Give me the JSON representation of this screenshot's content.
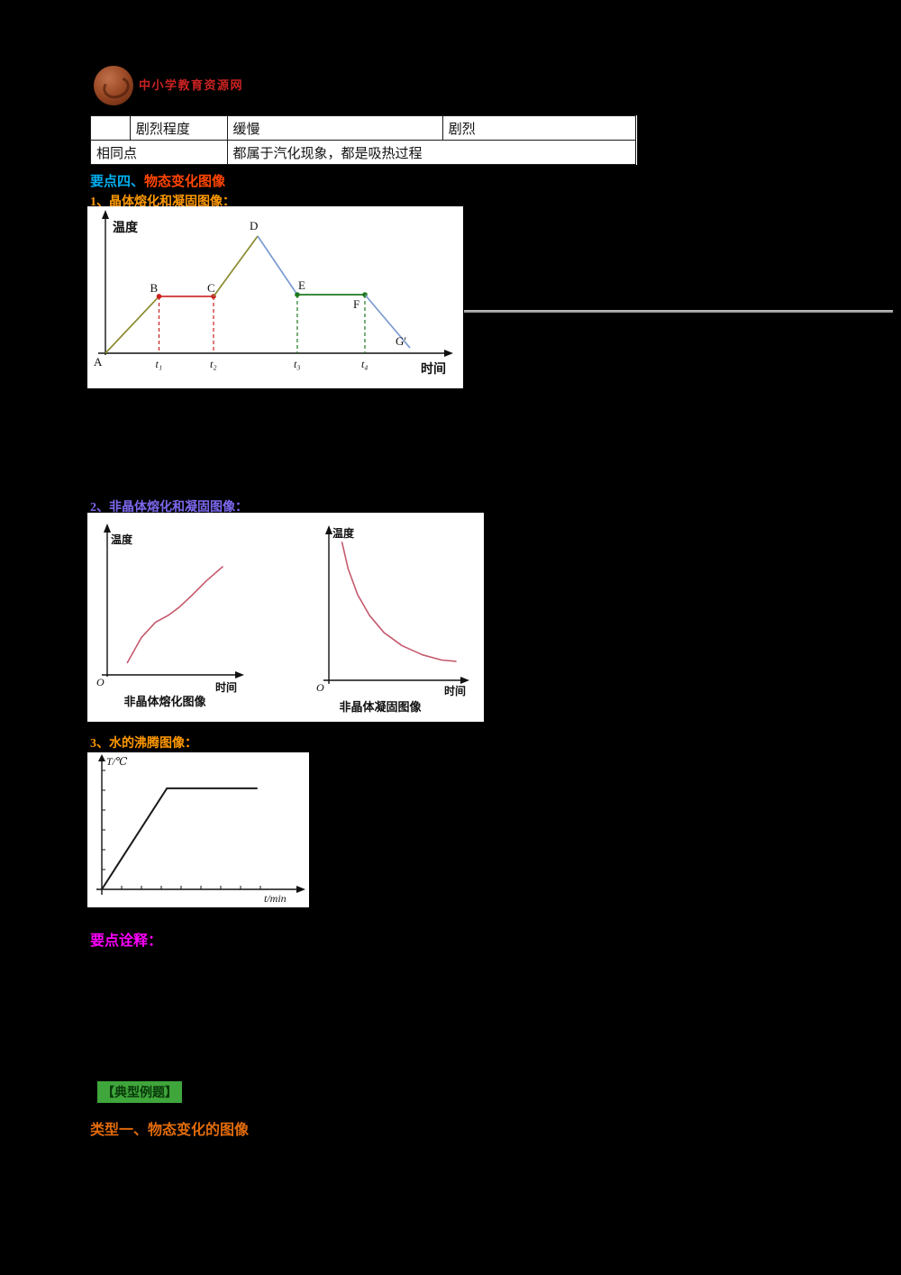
{
  "colors": {
    "background": "#000000",
    "topic_part1": "#00AEEF",
    "topic_part2": "#FF4500",
    "sub_heading_orange": "#FF9900",
    "sub_heading_violet": "#7B68EE",
    "notes_magenta": "#FF00FF",
    "examples_green": "#3FA63C",
    "type_orange": "#E26B0A",
    "logo_red": "#CC2222",
    "melt_plateau_red": "#cc2020",
    "freeze_plateau_green": "#1f7a1f",
    "cooling_blue": "#7b9bd2",
    "amorphous_curve_pink": "#c65a6e"
  },
  "logo": {
    "text": "中小学教育资源网"
  },
  "table": {
    "rows": [
      {
        "cells": [
          "",
          "剧烈程度",
          "缓慢",
          "剧烈"
        ]
      },
      {
        "cells": [
          "相同点",
          "都属于汽化现象，都是吸热过程"
        ]
      }
    ]
  },
  "headings": {
    "topic_part1": "要点四、",
    "topic_part2": "物态变化图像",
    "sub1": "1、晶体熔化和凝固图像：",
    "sub2": "2、非晶体熔化和凝固图像：",
    "sub3": "3、水的沸腾图像：",
    "notes": "要点诠释：",
    "examples": "【典型例题】",
    "type1": "类型一、物态变化的图像"
  },
  "chart_data": [
    {
      "type": "line",
      "title": "晶体熔化和凝固图像",
      "xlabel": "时间",
      "ylabel": "温度",
      "point_labels": [
        "A",
        "B",
        "C",
        "D",
        "E",
        "F",
        "G′"
      ],
      "points_norm": [
        [
          0,
          0
        ],
        [
          0.176,
          0.485
        ],
        [
          0.355,
          0.485
        ],
        [
          0.5,
          1.0
        ],
        [
          0.63,
          0.5
        ],
        [
          0.852,
          0.5
        ],
        [
          1.0,
          0.046
        ]
      ],
      "segments": [
        {
          "i": 0,
          "color": "#8a8a30"
        },
        {
          "i": 1,
          "color": "#cc2020",
          "dots": true
        },
        {
          "i": 2,
          "color": "#8a8a30"
        },
        {
          "i": 3,
          "color": "#7b9bd2"
        },
        {
          "i": 4,
          "color": "#1f7a1f",
          "dots": true
        },
        {
          "i": 5,
          "color": "#7b9bd2"
        }
      ],
      "dashed": [
        {
          "point": 1,
          "tick": "t₁",
          "color": "#cc2020"
        },
        {
          "point": 2,
          "tick": "t₂",
          "color": "#cc2020"
        },
        {
          "point": 4,
          "tick": "t₃",
          "color": "#1f7a1f"
        },
        {
          "point": 5,
          "tick": "t₄",
          "color": "#1f7a1f"
        }
      ]
    },
    {
      "type": "line",
      "title": "非晶体熔化图像",
      "xlabel": "时间",
      "ylabel": "温度",
      "origin_label": "O",
      "color": "#c65a6e",
      "points_norm": [
        [
          0.12,
          0.05
        ],
        [
          0.25,
          0.3
        ],
        [
          0.38,
          0.45
        ],
        [
          0.5,
          0.52
        ],
        [
          0.6,
          0.6
        ],
        [
          0.72,
          0.72
        ],
        [
          0.85,
          0.86
        ],
        [
          1.0,
          1.0
        ]
      ]
    },
    {
      "type": "line",
      "title": "非晶体凝固图像",
      "xlabel": "时间",
      "ylabel": "温度",
      "origin_label": "O",
      "color": "#c65a6e",
      "points_norm": [
        [
          0.05,
          1.0
        ],
        [
          0.1,
          0.8
        ],
        [
          0.18,
          0.6
        ],
        [
          0.28,
          0.44
        ],
        [
          0.4,
          0.31
        ],
        [
          0.55,
          0.21
        ],
        [
          0.72,
          0.14
        ],
        [
          0.88,
          0.1
        ],
        [
          1.0,
          0.09
        ]
      ]
    },
    {
      "type": "line",
      "title": "",
      "xlabel": "t/min",
      "ylabel": "T/℃",
      "color": "#1a1a1a",
      "points_norm": [
        [
          0,
          0
        ],
        [
          0.42,
          0.95
        ],
        [
          1.0,
          0.95
        ]
      ],
      "x_tick_count": 8,
      "y_tick_count": 6
    }
  ]
}
